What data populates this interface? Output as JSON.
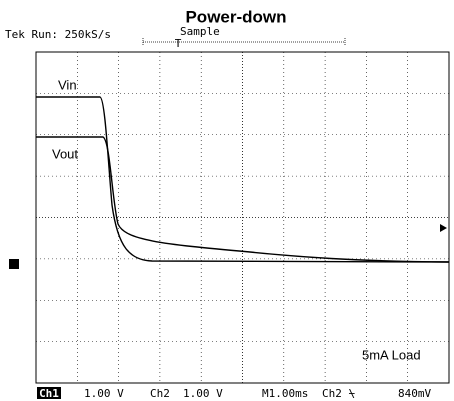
{
  "header": {
    "title": "Power-down",
    "status": "Tek Run: 250kS/s",
    "mode": "Sample",
    "trigger": "T"
  },
  "traces": {
    "vin": "Vin",
    "vout": "Vout",
    "marker": "1"
  },
  "annotation": "5mA Load",
  "footer": {
    "ch1": "Ch1",
    "ch1_scale": "1.00 V",
    "ch2": "Ch2",
    "ch2_scale": "1.00 V",
    "timebase": "M1.00ms",
    "trigger_source": "Ch2 ⍀",
    "trigger_level": "840mV"
  }
}
